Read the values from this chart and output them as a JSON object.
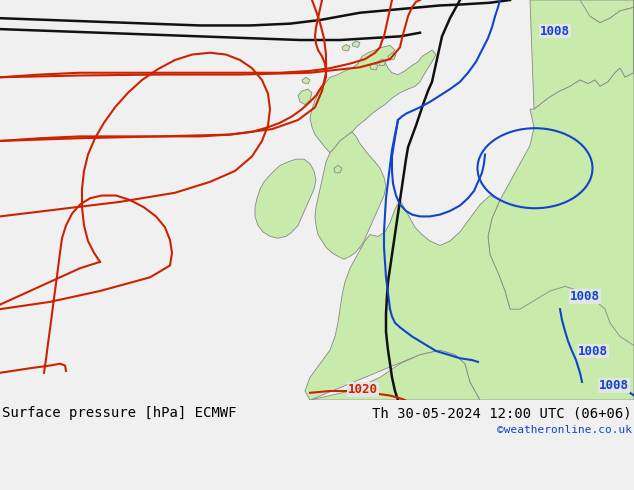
{
  "title_left": "Surface pressure [hPa] ECMWF",
  "title_right": "Th 30-05-2024 12:00 UTC (06+06)",
  "credit": "©weatheronline.co.uk",
  "bg_color": "#e4e4e4",
  "land_color": "#c8eaaa",
  "coast_color": "#888888",
  "isobar_blue": "#1144cc",
  "isobar_red": "#cc2200",
  "isobar_black": "#111111",
  "font_size_title": 10,
  "font_size_label": 9,
  "font_size_credit": 8
}
